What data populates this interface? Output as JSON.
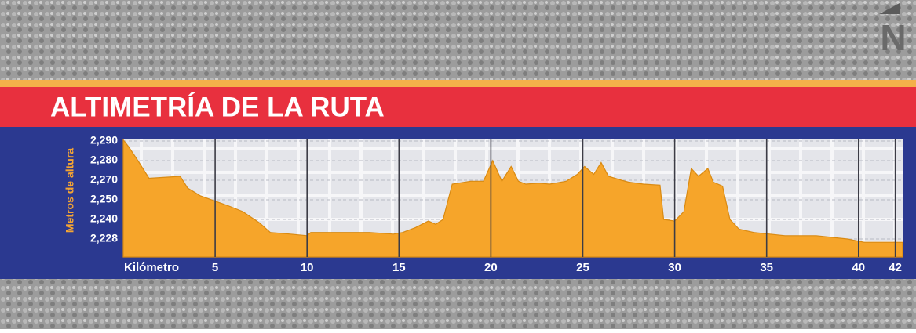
{
  "compass_label": "N",
  "chart_data": {
    "type": "area",
    "title": "ALTIMETRÍA DE LA RUTA",
    "y_label": "Metros de altura",
    "x_label": "Kilómetro",
    "color": "#f6a52a",
    "grid": true,
    "xlim": [
      0,
      42.4
    ],
    "ylim": [
      2217,
      2292
    ],
    "xticks": [
      5,
      10,
      15,
      20,
      25,
      30,
      35,
      40,
      42
    ],
    "yticks": [
      {
        "value": 2228,
        "label": "2,228"
      },
      {
        "value": 2240,
        "label": "2,240"
      },
      {
        "value": 2250,
        "label": "2,250"
      },
      {
        "value": 2270,
        "label": "2,270"
      },
      {
        "value": 2280,
        "label": "2,280"
      },
      {
        "value": 2290,
        "label": "2,290"
      }
    ],
    "x": [
      0,
      0.3,
      0.8,
      1.4,
      3.1,
      3.5,
      4.2,
      5.7,
      6.5,
      7.4,
      8.0,
      9.1,
      10.0,
      10.2,
      12.1,
      13.4,
      14.7,
      15.2,
      15.9,
      16.6,
      17.0,
      17.4,
      17.9,
      18.9,
      19.6,
      20.1,
      20.6,
      21.1,
      21.5,
      21.9,
      22.6,
      23.2,
      24.1,
      24.7,
      25.1,
      25.6,
      26.0,
      26.4,
      27.1,
      27.5,
      28.3,
      29.2,
      29.4,
      30.0,
      30.5,
      30.9,
      31.3,
      31.8,
      32.1,
      32.6,
      33.0,
      33.5,
      34.3,
      36.0,
      37.7,
      39.4,
      40.3,
      42.4
    ],
    "values": [
      2291,
      2287,
      2280,
      2271,
      2272,
      2262,
      2254,
      2247,
      2244,
      2238,
      2232,
      2231,
      2230,
      2232,
      2232,
      2232,
      2231,
      2232,
      2235,
      2239,
      2237,
      2240,
      2266,
      2269,
      2269,
      2280,
      2269,
      2277,
      2269,
      2266,
      2267,
      2266,
      2269,
      2273,
      2277,
      2273,
      2279,
      2272,
      2270,
      2268,
      2266,
      2265,
      2240,
      2239,
      2244,
      2276,
      2272,
      2276,
      2268,
      2264,
      2240,
      2234,
      2232,
      2230,
      2230,
      2228,
      2226,
      2226
    ]
  }
}
